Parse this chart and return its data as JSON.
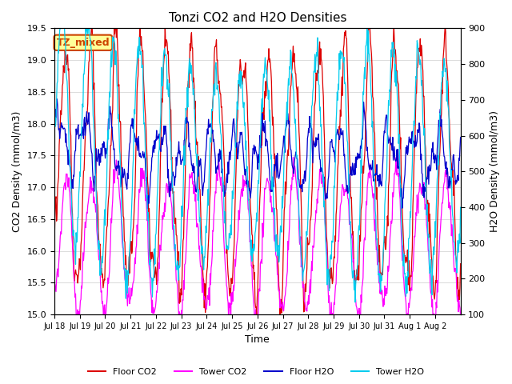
{
  "title": "Tonzi CO2 and H2O Densities",
  "xlabel": "Time",
  "ylabel_left": "CO2 Density (mmol/m3)",
  "ylabel_right": "H2O Density (mmol/m3)",
  "ylim_left": [
    15.0,
    19.5
  ],
  "ylim_right": [
    100,
    900
  ],
  "annotation_text": "TZ_mixed",
  "annotation_color": "#cc4400",
  "annotation_bg": "#ffff99",
  "annotation_edge": "#cc4400",
  "colors": {
    "floor_co2": "#dd0000",
    "tower_co2": "#ff00ff",
    "floor_h2o": "#0000cc",
    "tower_h2o": "#00ccee"
  },
  "legend_labels": [
    "Floor CO2",
    "Tower CO2",
    "Floor H2O",
    "Tower H2O"
  ],
  "xtick_labels": [
    "Jul 18",
    "Jul 19",
    "Jul 20",
    "Jul 21",
    "Jul 22",
    "Jul 23",
    "Jul 24",
    "Jul 25",
    "Jul 26",
    "Jul 27",
    "Jul 28",
    "Jul 29",
    "Jul 30",
    "Jul 31",
    "Aug 1",
    "Aug 2"
  ],
  "plot_bg": "#ffffff",
  "fig_bg": "#ffffff",
  "grid_color": "#dddddd",
  "seed": 42
}
